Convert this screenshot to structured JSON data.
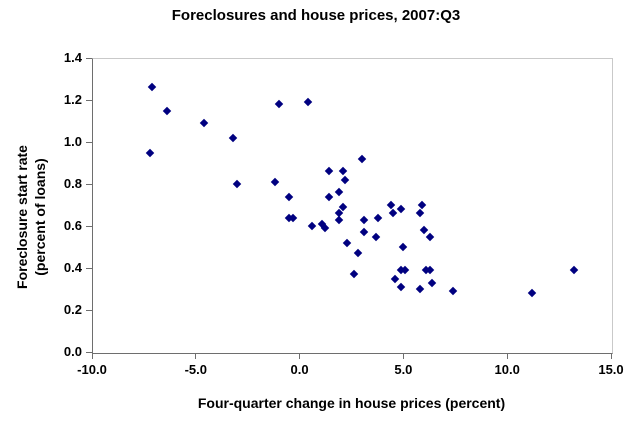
{
  "chart": {
    "title": "Foreclosures and house prices, 2007:Q3",
    "x_axis": {
      "label": "Four-quarter change in house prices (percent)",
      "min": -10,
      "max": 15,
      "ticks": [
        "-10.0",
        "-5.0",
        "0.0",
        "5.0",
        "10.0",
        "15.0"
      ]
    },
    "y_axis": {
      "label_line1": "Foreclosure start rate",
      "label_line2": "(percent of loans)",
      "min": 0,
      "max": 1.4,
      "ticks": [
        "0.0",
        "0.2",
        "0.4",
        "0.6",
        "0.8",
        "1.0",
        "1.2",
        "1.4"
      ]
    },
    "marker_color": "#000080",
    "axis_color": "#6e6e6e",
    "frame_color": "#c9c9c9"
  },
  "chart_data": {
    "type": "scatter",
    "title": "Foreclosures and house prices, 2007:Q3",
    "xlabel": "Four-quarter change in house prices (percent)",
    "ylabel": "Foreclosure start rate (percent of loans)",
    "xlim": [
      -10,
      15
    ],
    "ylim": [
      0,
      1.4
    ],
    "grid": false,
    "legend": false,
    "marker": "diamond",
    "points": [
      [
        -7.2,
        0.95
      ],
      [
        -7.1,
        1.26
      ],
      [
        -6.4,
        1.15
      ],
      [
        -4.6,
        1.09
      ],
      [
        -3.2,
        1.02
      ],
      [
        -3.0,
        0.8
      ],
      [
        -1.2,
        0.81
      ],
      [
        -1.0,
        1.18
      ],
      [
        -0.5,
        0.74
      ],
      [
        -0.5,
        0.64
      ],
      [
        -0.3,
        0.64
      ],
      [
        0.4,
        1.19
      ],
      [
        0.6,
        0.6
      ],
      [
        1.1,
        0.61
      ],
      [
        1.2,
        0.59
      ],
      [
        1.4,
        0.86
      ],
      [
        1.4,
        0.74
      ],
      [
        1.9,
        0.76
      ],
      [
        1.9,
        0.66
      ],
      [
        1.9,
        0.63
      ],
      [
        2.1,
        0.86
      ],
      [
        2.1,
        0.69
      ],
      [
        2.2,
        0.82
      ],
      [
        2.3,
        0.52
      ],
      [
        2.6,
        0.37
      ],
      [
        2.8,
        0.47
      ],
      [
        3.0,
        0.92
      ],
      [
        3.1,
        0.63
      ],
      [
        3.1,
        0.57
      ],
      [
        3.7,
        0.55
      ],
      [
        3.8,
        0.64
      ],
      [
        4.4,
        0.7
      ],
      [
        4.5,
        0.66
      ],
      [
        4.6,
        0.35
      ],
      [
        4.9,
        0.68
      ],
      [
        4.9,
        0.39
      ],
      [
        4.9,
        0.31
      ],
      [
        5.0,
        0.5
      ],
      [
        5.1,
        0.39
      ],
      [
        5.8,
        0.66
      ],
      [
        5.8,
        0.3
      ],
      [
        5.9,
        0.7
      ],
      [
        6.0,
        0.58
      ],
      [
        6.1,
        0.39
      ],
      [
        6.3,
        0.55
      ],
      [
        6.3,
        0.39
      ],
      [
        6.4,
        0.33
      ],
      [
        7.4,
        0.29
      ],
      [
        11.2,
        0.28
      ],
      [
        13.2,
        0.39
      ]
    ]
  }
}
